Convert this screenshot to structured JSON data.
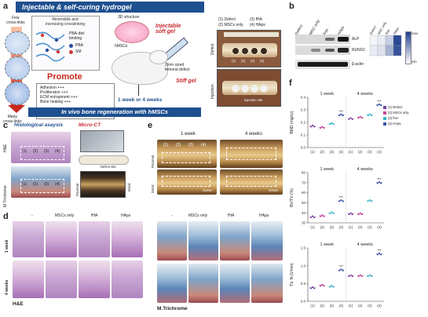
{
  "panel_a": {
    "letter": "a",
    "banner_title": "Injectable & self-curing hydrogel",
    "few_crosslinks": "Few\ncross-links",
    "many_crosslinks": "Many\ncross-links",
    "crosslinking_box": "Reversible and\nincreasing crosslinking",
    "pba_diol": "PBA-diol\nbinding",
    "legend_pba": "PBA",
    "legend_sm": "SM",
    "promote": "Promote",
    "promote_items": [
      "Adhesion +++",
      "Proliferaton +++",
      "ECM entrapment +++",
      "Bone healing +++"
    ],
    "structure_3d": "3D structure",
    "hmscs": "hMSCs",
    "injectable_soft_gel": "Injectable\nsoft gel",
    "femoral_defect": "2mm sized\nfemoral defect",
    "stiff_gel": "Stiff gel",
    "timepoint": "1 week or 4 weeks",
    "footer": "In vivo bone regeneration with hMSCs",
    "groups_legend": [
      "(1) Defect",
      "(3) fHA",
      "(2) MSCs only",
      "(4) HAps"
    ],
    "photo_defect": "Defect",
    "photo_injection": "Injection",
    "injection_site": "Injection site",
    "hole_labels": [
      "(1)",
      "(2)",
      "(3)",
      "(4)"
    ]
  },
  "panel_b": {
    "letter": "b",
    "columns": [
      "Defect",
      "MSC only",
      "fHA",
      "HAps"
    ],
    "rows": [
      "ALP",
      "RUNX2",
      "β-actin"
    ],
    "heat_max": "max",
    "heat_min": "min",
    "heat_values": [
      [
        0.05,
        0.1,
        0.25,
        0.95
      ],
      [
        0.1,
        0.15,
        0.4,
        0.9
      ]
    ],
    "heat_colors": {
      "low": "#ffffff",
      "high": "#1f3f8f"
    }
  },
  "panel_c": {
    "letter": "c",
    "histology_title": "Histological asaysis",
    "microct_title": "Micro-CT",
    "he_label": "H&E",
    "mt_label": "M.Trichrome",
    "hole_labels": [
      "(1)",
      "(2)",
      "(3)",
      "(4)"
    ],
    "defect_site": "Defect site",
    "proximal": "Proximal",
    "distal": "Distal"
  },
  "panel_d": {
    "letter": "d",
    "columns": [
      "-",
      "MSCs only",
      "fHA",
      "HAps"
    ],
    "rows": [
      "1 week",
      "4 weeks"
    ],
    "stain": "H&E"
  },
  "panel_e": {
    "letter": "e",
    "timepoints": [
      "1 week",
      "4 weeks"
    ],
    "hole_labels": [
      "(1)",
      "(2)",
      "(3)",
      "(4)"
    ],
    "proximal": "Proximal",
    "distal": "Distal",
    "screw": "Screw",
    "columns": [
      "-",
      "MSCs only",
      "fHA",
      "HAps"
    ],
    "rows": [
      "1 week",
      "4 weeks"
    ],
    "stain": "M.Trichrome"
  },
  "panel_f": {
    "letter": "f",
    "legend": [
      "(1) Defect",
      "(2) MSCs only",
      "(3) fHA",
      "(4) HAps"
    ],
    "significance": "***"
  },
  "chart_data": [
    {
      "type": "scatter",
      "ylabel": "BMD (mg/cc)",
      "facets": [
        "1 week",
        "4 weeks"
      ],
      "categories": [
        "(1)",
        "(2)",
        "(3)",
        "(4)"
      ],
      "ylim": [
        0.0,
        0.4
      ],
      "yticks": [
        "0.0",
        "0.1",
        "0.2",
        "0.3",
        "0.4"
      ],
      "series": [
        {
          "facet": "1 week",
          "values": [
            0.17,
            0.16,
            0.19,
            0.26
          ]
        },
        {
          "facet": "4 weeks",
          "values": [
            0.23,
            0.24,
            0.26,
            0.34
          ]
        }
      ],
      "significant": [
        [
          false,
          false,
          false,
          true
        ],
        [
          false,
          false,
          false,
          true
        ]
      ]
    },
    {
      "type": "scatter",
      "ylabel": "BV/TV (%)",
      "facets": [
        "1 week",
        "4 weeks"
      ],
      "categories": [
        "(1)",
        "(2)",
        "(3)",
        "(4)"
      ],
      "ylim": [
        30,
        80
      ],
      "yticks": [
        "30",
        "40",
        "50",
        "60",
        "70",
        "80"
      ],
      "series": [
        {
          "facet": "1 week",
          "values": [
            36,
            37,
            40,
            52
          ]
        },
        {
          "facet": "4 weeks",
          "values": [
            39,
            39,
            52,
            70
          ]
        }
      ],
      "significant": [
        [
          false,
          false,
          false,
          true
        ],
        [
          false,
          false,
          false,
          true
        ]
      ]
    },
    {
      "type": "scatter",
      "ylabel": "Tb. N (1/mm)",
      "facets": [
        "1 week",
        "4 weeks"
      ],
      "categories": [
        "(1)",
        "(2)",
        "(3)",
        "(4)"
      ],
      "ylim": [
        0.0,
        1.5
      ],
      "yticks": [
        "0.0",
        "0.5",
        "1.0",
        "1.5"
      ],
      "series": [
        {
          "facet": "1 week",
          "values": [
            0.38,
            0.45,
            0.42,
            0.88
          ]
        },
        {
          "facet": "4 weeks",
          "values": [
            0.72,
            0.72,
            0.72,
            1.33
          ]
        }
      ],
      "significant": [
        [
          false,
          false,
          false,
          true
        ],
        [
          false,
          false,
          false,
          true
        ]
      ]
    }
  ],
  "group_colors": [
    "#7b3fa0",
    "#c2419a",
    "#38b3c8",
    "#3954a6"
  ]
}
